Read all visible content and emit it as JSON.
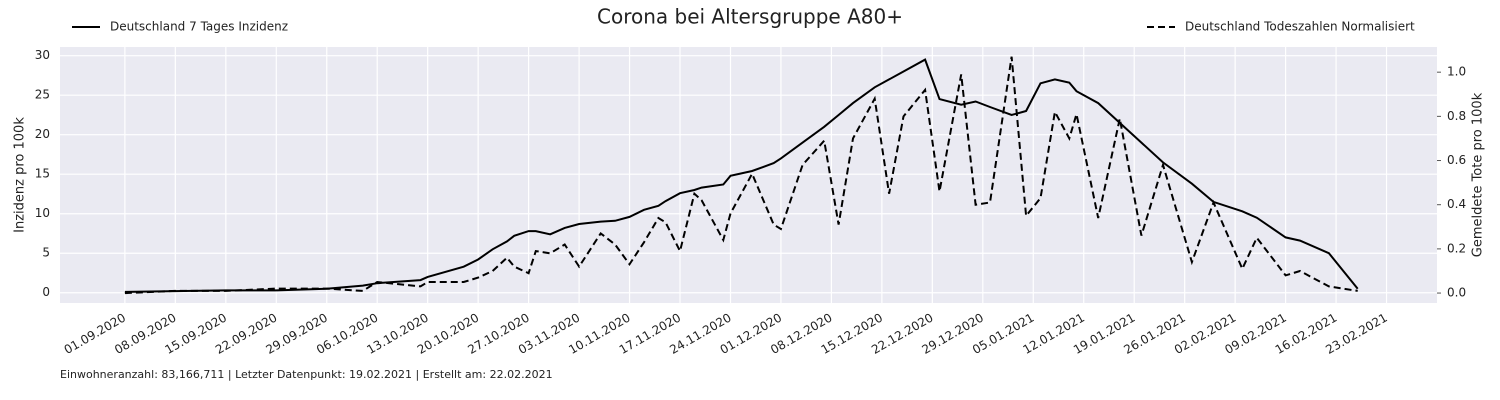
{
  "chart_data": {
    "type": "line",
    "title": "Corona bei Altersgruppe A80+",
    "ylabel": "Inzidenz pro 100k",
    "y2label": "Gemeldete Tote pro 100k",
    "footnote": "Einwohneranzahl: 83,166,711 | Letzter Datenpunkt: 19.02.2021 | Erstellt am: 22.02.2021",
    "grid": true,
    "x": [
      "2020-09-01",
      "2020-09-08",
      "2020-09-15",
      "2020-09-22",
      "2020-09-29",
      "2020-10-04",
      "2020-10-06",
      "2020-10-12",
      "2020-10-13",
      "2020-10-18",
      "2020-10-20",
      "2020-10-22",
      "2020-10-24",
      "2020-10-25",
      "2020-10-27",
      "2020-10-28",
      "2020-10-30",
      "2020-11-01",
      "2020-11-03",
      "2020-11-06",
      "2020-11-08",
      "2020-11-10",
      "2020-11-12",
      "2020-11-14",
      "2020-11-15",
      "2020-11-17",
      "2020-11-19",
      "2020-11-20",
      "2020-11-23",
      "2020-11-24",
      "2020-11-27",
      "2020-11-30",
      "2020-12-01",
      "2020-12-04",
      "2020-12-07",
      "2020-12-09",
      "2020-12-11",
      "2020-12-14",
      "2020-12-16",
      "2020-12-18",
      "2020-12-21",
      "2020-12-23",
      "2020-12-26",
      "2020-12-28",
      "2020-12-30",
      "2021-01-02",
      "2021-01-04",
      "2021-01-06",
      "2021-01-08",
      "2021-01-10",
      "2021-01-11",
      "2021-01-14",
      "2021-01-17",
      "2021-01-20",
      "2021-01-23",
      "2021-01-27",
      "2021-01-30",
      "2021-02-03",
      "2021-02-05",
      "2021-02-09",
      "2021-02-11",
      "2021-02-15",
      "2021-02-19"
    ],
    "series": [
      {
        "name": "Deutschland 7 Tages Inzidenz",
        "color": "#000000",
        "linestyle": "solid",
        "axis": "y",
        "values": [
          0.1,
          0.2,
          0.3,
          0.3,
          0.5,
          0.9,
          1.2,
          1.6,
          2.0,
          3.3,
          4.2,
          5.5,
          6.5,
          7.2,
          7.8,
          7.8,
          7.4,
          8.2,
          8.7,
          9.0,
          9.1,
          9.6,
          10.5,
          11.0,
          11.6,
          12.6,
          13.0,
          13.3,
          13.7,
          14.8,
          15.4,
          16.4,
          17.0,
          19.0,
          21.0,
          22.5,
          24.0,
          26.0,
          27.0,
          28.0,
          29.5,
          24.5,
          23.8,
          24.2,
          23.5,
          22.5,
          23.0,
          26.5,
          27.0,
          26.6,
          25.5,
          24.0,
          21.5,
          19.0,
          16.5,
          13.8,
          11.5,
          10.3,
          9.5,
          7.0,
          6.6,
          5.0,
          0.5
        ]
      },
      {
        "name": "Deutschland Todeszahlen Normalisiert",
        "color": "#000000",
        "linestyle": "dashed",
        "axis": "y2",
        "values": [
          0.0,
          0.01,
          0.01,
          0.02,
          0.02,
          0.01,
          0.05,
          0.03,
          0.05,
          0.05,
          0.07,
          0.1,
          0.16,
          0.12,
          0.09,
          0.19,
          0.18,
          0.22,
          0.12,
          0.27,
          0.22,
          0.13,
          0.23,
          0.34,
          0.32,
          0.19,
          0.45,
          0.42,
          0.24,
          0.36,
          0.54,
          0.31,
          0.29,
          0.58,
          0.69,
          0.31,
          0.7,
          0.88,
          0.45,
          0.8,
          0.92,
          0.46,
          0.99,
          0.4,
          0.41,
          1.07,
          0.35,
          0.43,
          0.82,
          0.7,
          0.81,
          0.34,
          0.79,
          0.26,
          0.58,
          0.14,
          0.41,
          0.11,
          0.25,
          0.08,
          0.1,
          0.03,
          0.01
        ]
      }
    ],
    "xlim": [
      "2020-08-23",
      "2021-03-02"
    ],
    "xticks": [
      {
        "value": "2020-09-01",
        "label": "01.09.2020"
      },
      {
        "value": "2020-09-08",
        "label": "08.09.2020"
      },
      {
        "value": "2020-09-15",
        "label": "15.09.2020"
      },
      {
        "value": "2020-09-22",
        "label": "22.09.2020"
      },
      {
        "value": "2020-09-29",
        "label": "29.09.2020"
      },
      {
        "value": "2020-10-06",
        "label": "06.10.2020"
      },
      {
        "value": "2020-10-13",
        "label": "13.10.2020"
      },
      {
        "value": "2020-10-20",
        "label": "20.10.2020"
      },
      {
        "value": "2020-10-27",
        "label": "27.10.2020"
      },
      {
        "value": "2020-11-03",
        "label": "03.11.2020"
      },
      {
        "value": "2020-11-10",
        "label": "10.11.2020"
      },
      {
        "value": "2020-11-17",
        "label": "17.11.2020"
      },
      {
        "value": "2020-11-24",
        "label": "24.11.2020"
      },
      {
        "value": "2020-12-01",
        "label": "01.12.2020"
      },
      {
        "value": "2020-12-08",
        "label": "08.12.2020"
      },
      {
        "value": "2020-12-15",
        "label": "15.12.2020"
      },
      {
        "value": "2020-12-22",
        "label": "22.12.2020"
      },
      {
        "value": "2020-12-29",
        "label": "29.12.2020"
      },
      {
        "value": "2021-01-05",
        "label": "05.01.2021"
      },
      {
        "value": "2021-01-12",
        "label": "12.01.2021"
      },
      {
        "value": "2021-01-19",
        "label": "19.01.2021"
      },
      {
        "value": "2021-01-26",
        "label": "26.01.2021"
      },
      {
        "value": "2021-02-02",
        "label": "02.02.2021"
      },
      {
        "value": "2021-02-09",
        "label": "09.02.2021"
      },
      {
        "value": "2021-02-16",
        "label": "16.02.2021"
      },
      {
        "value": "2021-02-23",
        "label": "23.02.2021"
      }
    ],
    "ylim": [
      -1.3,
      31.1
    ],
    "yticks": [
      0,
      5,
      10,
      15,
      20,
      25,
      30
    ],
    "y2lim": [
      -0.045,
      1.114
    ],
    "y2ticks": [
      {
        "value": 0,
        "label": "0.0"
      },
      0.2,
      0.4,
      0.6,
      0.8,
      {
        "value": 1,
        "label": "1.0"
      }
    ]
  }
}
